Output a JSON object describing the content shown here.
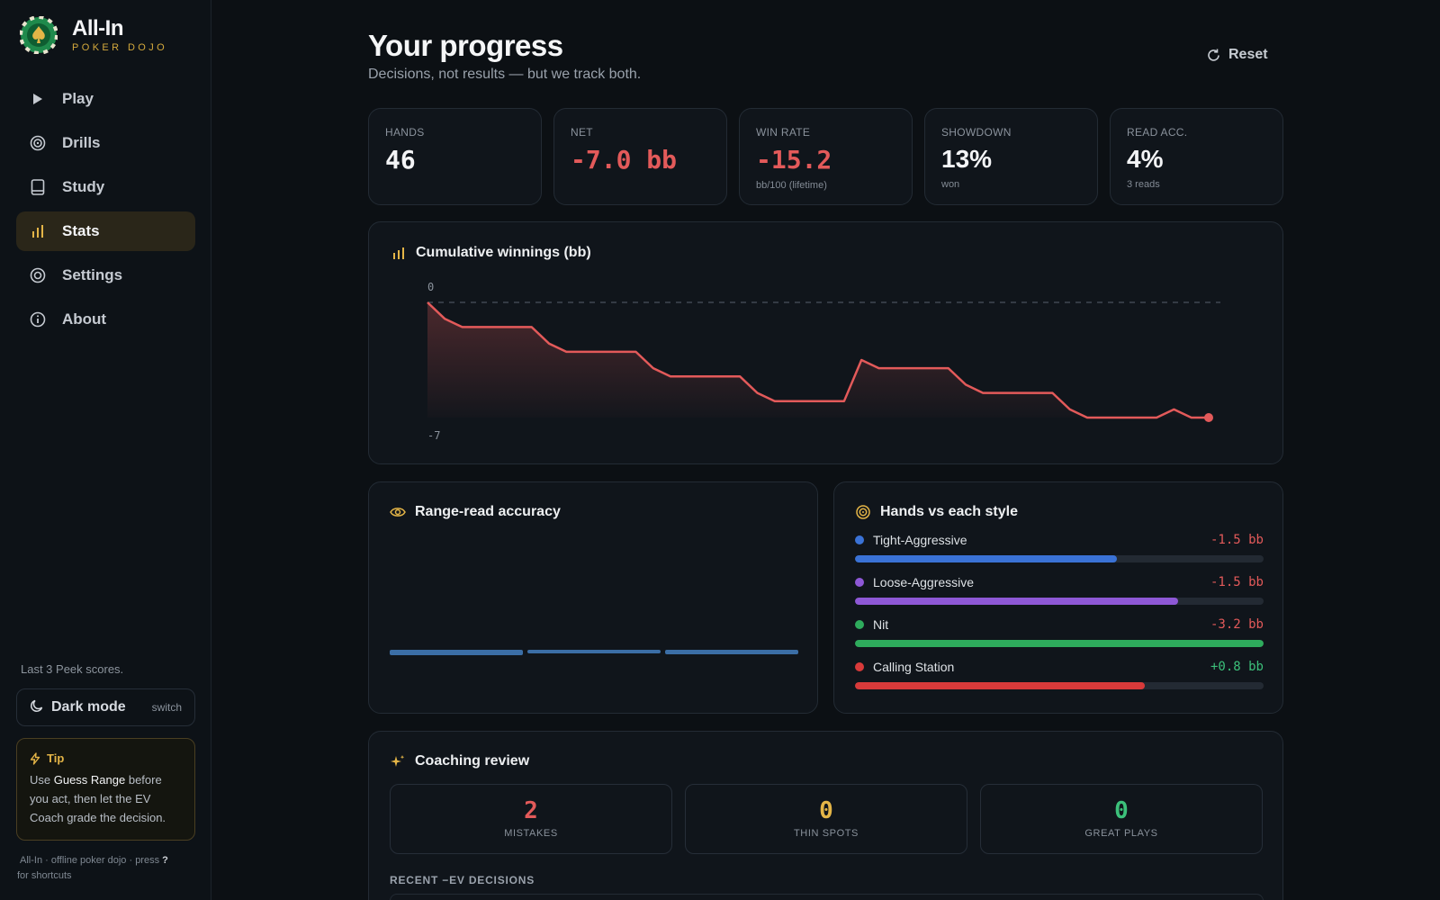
{
  "brand": {
    "name": "All-In",
    "subtitle": "POKER DOJO"
  },
  "nav": {
    "items": [
      {
        "label": "Play",
        "icon": "play-icon"
      },
      {
        "label": "Drills",
        "icon": "target-icon"
      },
      {
        "label": "Study",
        "icon": "book-icon"
      },
      {
        "label": "Stats",
        "icon": "bar-chart-icon",
        "active": true
      },
      {
        "label": "Settings",
        "icon": "settings-icon"
      },
      {
        "label": "About",
        "icon": "info-icon"
      }
    ]
  },
  "darkmode": {
    "label": "Dark mode",
    "action": "switch"
  },
  "tip": {
    "title": "Tip",
    "pre": "Use ",
    "highlight": "Guess Range",
    "post": " before you act, then let the EV Coach grade the decision."
  },
  "footer": {
    "text": "All-In · offline poker dojo · press ",
    "key": "?",
    "suffix": " for shortcuts"
  },
  "header": {
    "title": "Your progress",
    "subtitle": "Decisions, not results — but we track both.",
    "reset_label": "Reset"
  },
  "stats": [
    {
      "label": "HANDS",
      "value": "46",
      "sub": ""
    },
    {
      "label": "NET",
      "value": "-7.0 bb",
      "sub": ""
    },
    {
      "label": "WIN RATE",
      "value": "-15.2",
      "sub": "bb/100 (lifetime)"
    },
    {
      "label": "SHOWDOWN",
      "value": "13%",
      "sub": "won"
    },
    {
      "label": "READ ACC.",
      "value": "4%",
      "sub": "3 reads"
    }
  ],
  "chart": {
    "title": "Cumulative winnings (bb)",
    "line_color": "#e35a5a"
  },
  "chart_data": {
    "type": "area",
    "title": "Cumulative winnings (bb)",
    "ylim": [
      -7,
      0
    ],
    "y_tick_labels": [
      "0",
      "-7"
    ],
    "zero_line": true,
    "x": [
      0,
      1,
      2,
      3,
      4,
      5,
      6,
      7,
      8,
      9,
      10,
      11,
      12,
      13,
      14,
      15,
      16,
      17,
      18,
      19,
      20,
      21,
      22,
      23,
      24,
      25,
      26,
      27,
      28,
      29,
      30,
      31,
      32,
      33,
      34,
      35,
      36,
      37,
      38,
      39,
      40,
      41,
      42,
      43,
      44,
      45
    ],
    "values": [
      0,
      -1,
      -1.5,
      -1.5,
      -1.5,
      -1.5,
      -1.5,
      -2.5,
      -3,
      -3,
      -3,
      -3,
      -3,
      -4,
      -4.5,
      -4.5,
      -4.5,
      -4.5,
      -4.5,
      -5.5,
      -6,
      -6,
      -6,
      -6,
      -6,
      -3.5,
      -4,
      -4,
      -4,
      -4,
      -4,
      -5,
      -5.5,
      -5.5,
      -5.5,
      -5.5,
      -5.5,
      -6.5,
      -7,
      -7,
      -7,
      -7,
      -7,
      -6.5,
      -7,
      -7
    ]
  },
  "range_read": {
    "title": "Range-read accuracy",
    "caption": "Last 3 Peek scores.",
    "scores": [
      0.06,
      0.04,
      0.05
    ]
  },
  "styles": {
    "title": "Hands vs each style",
    "items": [
      {
        "name": "Tight-Aggressive",
        "value": "-1.5 bb",
        "color": "#3a72d6",
        "share": 0.64,
        "value_color": "#e35a5a"
      },
      {
        "name": "Loose-Aggressive",
        "value": "-1.5 bb",
        "color": "#8e58d6",
        "share": 0.79,
        "value_color": "#e35a5a"
      },
      {
        "name": "Nit",
        "value": "-3.2 bb",
        "color": "#2eab5c",
        "share": 1.0,
        "value_color": "#e35a5a"
      },
      {
        "name": "Calling Station",
        "value": "+0.8 bb",
        "color": "#d83a3a",
        "share": 0.71,
        "value_color": "#3cc07a"
      }
    ]
  },
  "coaching": {
    "title": "Coaching review",
    "boxes": [
      {
        "value": "2",
        "label": "MISTAKES",
        "color": "#e35a5a"
      },
      {
        "value": "0",
        "label": "THIN SPOTS",
        "color": "#e4b547"
      },
      {
        "value": "0",
        "label": "GREAT PLAYS",
        "color": "#3cc07a"
      }
    ],
    "recent_label": "RECENT −EV DECISIONS"
  }
}
